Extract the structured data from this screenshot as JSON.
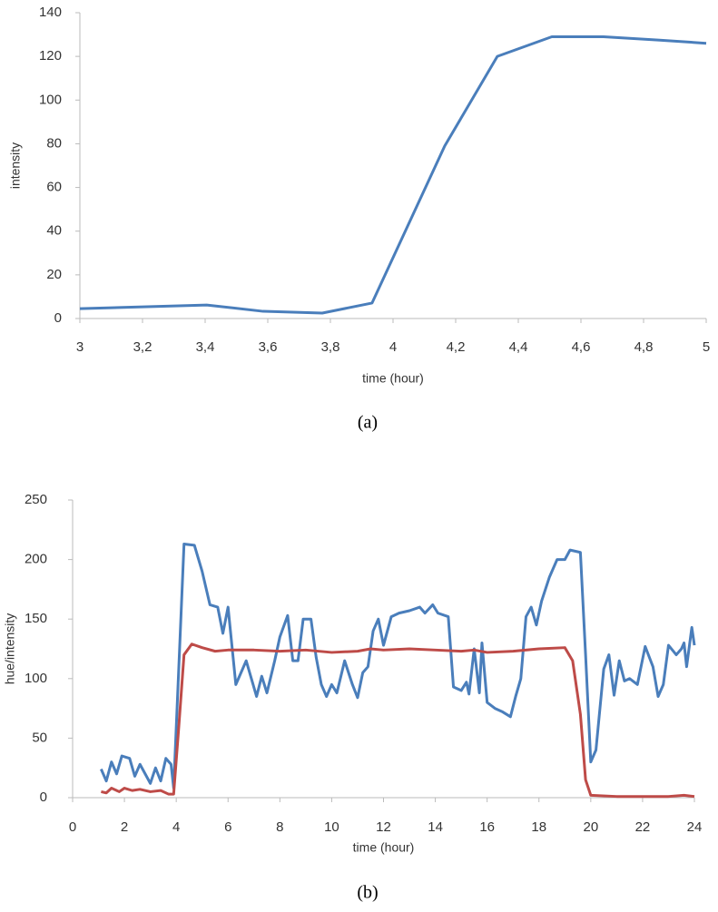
{
  "chart_data": [
    {
      "type": "line",
      "caption": "(a)",
      "xlabel": "time (hour)",
      "ylabel": "intensity",
      "xlim": [
        3,
        5
      ],
      "xticks": [
        3,
        {
          "value": 3.2,
          "label": "3,2"
        },
        {
          "value": 3.4,
          "label": "3,4"
        },
        {
          "value": 3.6,
          "label": "3,6"
        },
        {
          "value": 3.8,
          "label": "3,8"
        },
        4,
        {
          "value": 4.2,
          "label": "4,2"
        },
        {
          "value": 4.4,
          "label": "4,4"
        },
        {
          "value": 4.6,
          "label": "4,6"
        },
        {
          "value": 4.8,
          "label": "4,8"
        },
        5
      ],
      "ylim": [
        0,
        140
      ],
      "yticks": [
        0,
        20,
        40,
        60,
        80,
        100,
        120,
        140
      ],
      "grid": false,
      "series": [
        {
          "color": "#4a7ebb",
          "x": [
            3.0,
            3.405,
            3.585,
            3.774,
            3.933,
            4.165,
            4.333,
            4.507,
            4.672,
            4.846,
            5.0
          ],
          "values": [
            4.5,
            6.2,
            3.3,
            2.5,
            7.1,
            79,
            120,
            129,
            129,
            127.5,
            126
          ]
        }
      ]
    },
    {
      "type": "line",
      "caption": "(b)",
      "xlabel": "time (hour)",
      "ylabel": "hue/intensity",
      "xlim": [
        0,
        24
      ],
      "xticks": [
        0,
        2,
        4,
        6,
        8,
        10,
        12,
        14,
        16,
        18,
        20,
        22,
        24
      ],
      "ylim": [
        0,
        250
      ],
      "yticks": [
        0,
        50,
        100,
        150,
        200,
        250
      ],
      "grid": false,
      "series": [
        {
          "color": "#4a7ebb",
          "x": [
            1.1,
            1.3,
            1.5,
            1.7,
            1.9,
            2.2,
            2.4,
            2.6,
            2.8,
            3.0,
            3.2,
            3.4,
            3.6,
            3.8,
            3.9,
            4.1,
            4.3,
            4.7,
            5.0,
            5.3,
            5.6,
            5.8,
            6.0,
            6.3,
            6.5,
            6.7,
            6.9,
            7.1,
            7.3,
            7.5,
            7.8,
            8.0,
            8.3,
            8.5,
            8.7,
            8.9,
            9.2,
            9.4,
            9.6,
            9.8,
            10.0,
            10.2,
            10.5,
            10.8,
            11.0,
            11.2,
            11.4,
            11.6,
            11.8,
            12.0,
            12.3,
            12.6,
            13.0,
            13.4,
            13.6,
            13.9,
            14.1,
            14.5,
            14.7,
            15.0,
            15.2,
            15.3,
            15.5,
            15.7,
            15.8,
            16.0,
            16.3,
            16.6,
            16.9,
            17.1,
            17.3,
            17.5,
            17.7,
            17.9,
            18.1,
            18.4,
            18.7,
            19.0,
            19.2,
            19.6,
            19.8,
            20.0,
            20.2,
            20.5,
            20.7,
            20.9,
            21.1,
            21.3,
            21.5,
            21.8,
            22.1,
            22.4,
            22.6,
            22.8,
            23.0,
            23.3,
            23.5,
            23.6,
            23.7,
            23.9,
            24.0
          ],
          "values": [
            24,
            14,
            30,
            20,
            35,
            33,
            18,
            28,
            20,
            12,
            25,
            14,
            33,
            28,
            8,
            110,
            213,
            212,
            190,
            162,
            160,
            138,
            160,
            95,
            105,
            115,
            100,
            85,
            102,
            88,
            115,
            135,
            153,
            115,
            115,
            150,
            150,
            118,
            95,
            85,
            95,
            88,
            115,
            95,
            84,
            105,
            110,
            140,
            150,
            128,
            152,
            155,
            157,
            160,
            155,
            162,
            155,
            152,
            93,
            90,
            97,
            87,
            125,
            88,
            130,
            80,
            75,
            72,
            68,
            85,
            100,
            152,
            160,
            145,
            165,
            185,
            200,
            200,
            208,
            206,
            120,
            30,
            40,
            108,
            120,
            86,
            115,
            98,
            100,
            95,
            127,
            110,
            85,
            95,
            128,
            120,
            125,
            130,
            110,
            143,
            128
          ]
        },
        {
          "color": "#be4b48",
          "x": [
            1.1,
            1.3,
            1.5,
            1.8,
            2.0,
            2.3,
            2.6,
            3.0,
            3.4,
            3.7,
            3.9,
            4.1,
            4.3,
            4.6,
            5.0,
            5.5,
            6.0,
            7.0,
            8.0,
            9.0,
            10.0,
            11.0,
            11.5,
            12.0,
            13.0,
            14.0,
            15.0,
            15.5,
            16.0,
            17.0,
            18.0,
            19.0,
            19.3,
            19.6,
            19.8,
            20.0,
            21.0,
            22.0,
            23.0,
            23.6,
            24.0
          ],
          "values": [
            5,
            4,
            8,
            5,
            8,
            6,
            7,
            5,
            6,
            3,
            3,
            60,
            120,
            129,
            126,
            123,
            124,
            124,
            123,
            124,
            122,
            123,
            125,
            124,
            125,
            124,
            123,
            124,
            122,
            123,
            125,
            126,
            115,
            70,
            15,
            2,
            1,
            1,
            1,
            2,
            1
          ]
        }
      ]
    }
  ]
}
